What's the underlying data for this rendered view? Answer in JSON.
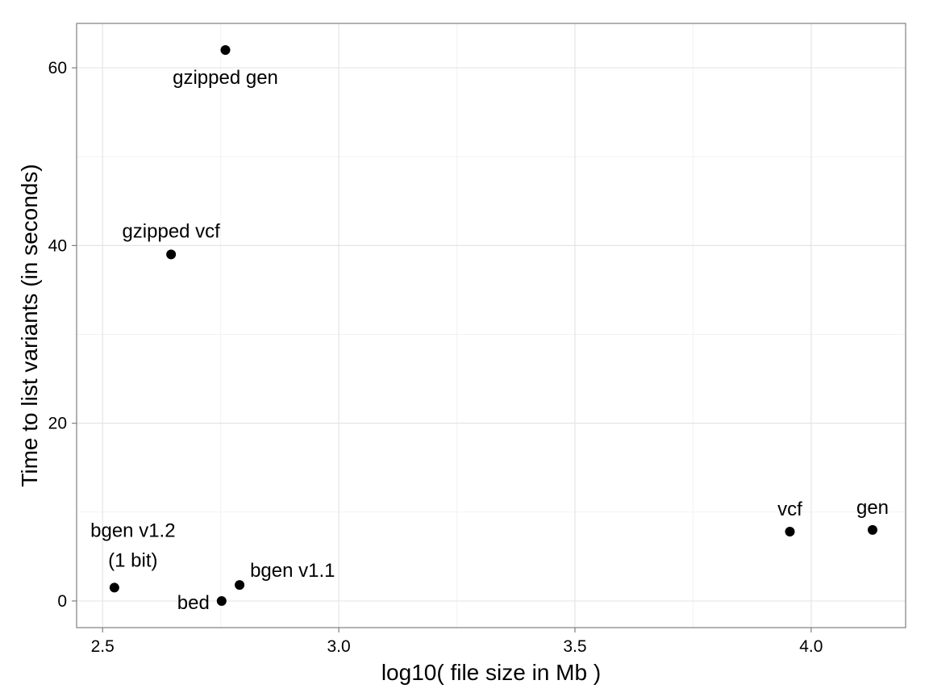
{
  "chart_data": {
    "type": "scatter",
    "xlabel": "log10( file size in Mb )",
    "ylabel": "Time to list variants (in seconds)",
    "xlim": [
      2.445,
      4.2
    ],
    "ylim": [
      -3,
      65
    ],
    "x_ticks": [
      2.5,
      3.0,
      3.5,
      4.0
    ],
    "x_tick_labels": [
      "2.5",
      "3.0",
      "3.5",
      "4.0"
    ],
    "y_ticks": [
      0,
      20,
      40,
      60
    ],
    "y_tick_labels": [
      "0",
      "20",
      "40",
      "60"
    ],
    "grid": true,
    "marker_color": "#000000",
    "points": [
      {
        "label": "gzipped gen",
        "x": 2.76,
        "y": 62.0
      },
      {
        "label": "gzipped vcf",
        "x": 2.645,
        "y": 39.0
      },
      {
        "label": "bgen v1.2",
        "label_line2": "(1 bit)",
        "x": 2.525,
        "y": 1.5
      },
      {
        "label": "bed",
        "x": 2.752,
        "y": 0.0
      },
      {
        "label": "bgen v1.1",
        "x": 2.79,
        "y": 1.8
      },
      {
        "label": "vcf",
        "x": 3.955,
        "y": 7.8
      },
      {
        "label": "gen",
        "x": 4.13,
        "y": 8.0
      }
    ]
  }
}
